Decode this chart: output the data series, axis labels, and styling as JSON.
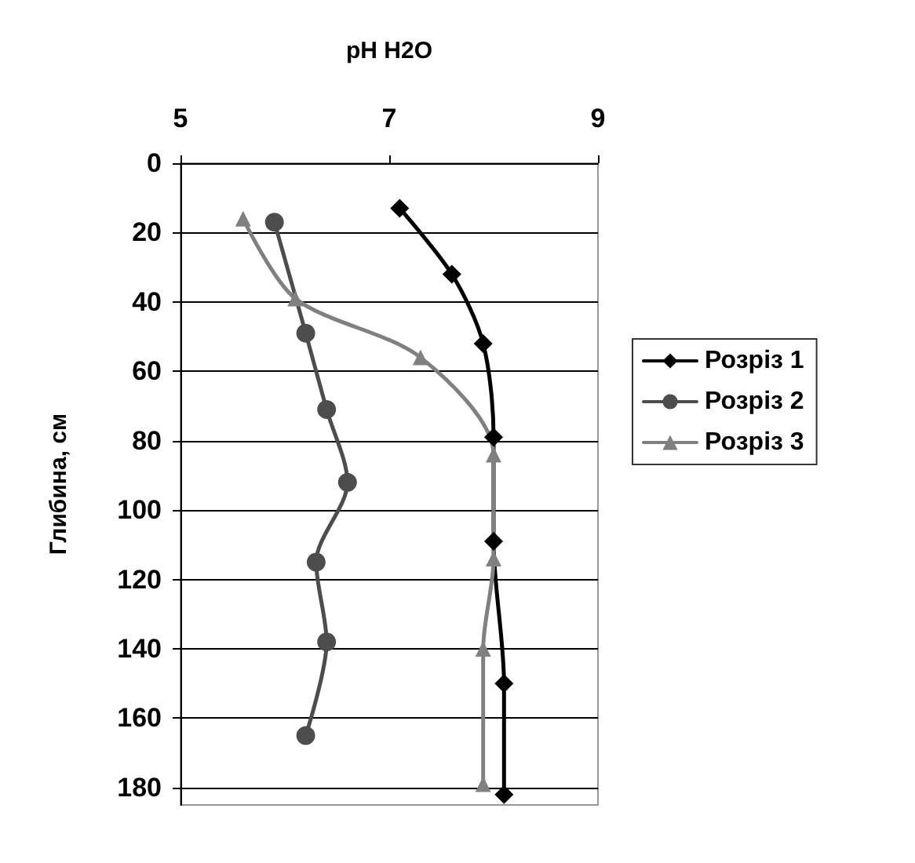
{
  "chart_data": {
    "type": "line",
    "xlabel": "pH H2O",
    "ylabel": "Глибина, см",
    "xlim": [
      5,
      9
    ],
    "xticks": [
      5,
      7,
      9
    ],
    "ylim": [
      185,
      0
    ],
    "yticks": [
      0,
      20,
      40,
      60,
      80,
      100,
      120,
      140,
      160,
      180
    ],
    "grid": "y",
    "legend": "right",
    "series": [
      {
        "name": "Розріз 1",
        "color": "#000000",
        "marker": "diamond",
        "x": [
          7.1,
          7.6,
          7.9,
          8.0,
          8.0,
          8.1,
          8.1
        ],
        "values": [
          13,
          32,
          52,
          79,
          109,
          150,
          182
        ]
      },
      {
        "name": "Розріз 2",
        "color": "#4d4d4d",
        "marker": "circle",
        "x": [
          5.9,
          6.2,
          6.4,
          6.6,
          6.3,
          6.4,
          6.2
        ],
        "values": [
          17,
          49,
          71,
          92,
          115,
          138,
          165
        ]
      },
      {
        "name": "Розріз 3",
        "color": "#808080",
        "marker": "triangle",
        "x": [
          5.6,
          6.1,
          7.3,
          8.0,
          8.0,
          7.9,
          7.9
        ],
        "values": [
          16,
          39,
          56,
          84,
          114,
          140,
          179
        ]
      }
    ]
  }
}
